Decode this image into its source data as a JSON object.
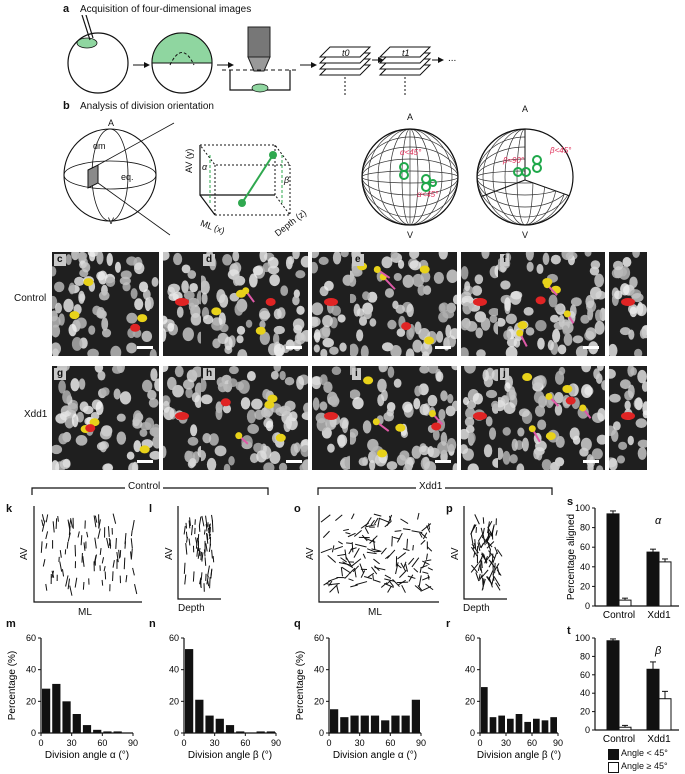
{
  "panel_a": {
    "letter": "a",
    "title": "Acquisition of four-dimensional images",
    "stack_t0": "t0",
    "stack_t1": "t1",
    "ellipsis": "..."
  },
  "panel_b": {
    "letter": "b",
    "title": "Analysis of division orientation",
    "sphere_a": "A",
    "sphere_v": "V",
    "sphere_dm": "dm",
    "sphere_eq": "eq.",
    "axis_av": "AV (y)",
    "axis_ml": "ML (x)",
    "axis_depth": "Depth (z)",
    "angle_alpha": "α",
    "angle_beta": "β",
    "globe1_a": "A",
    "globe1_v": "V",
    "globe1_top": "α<45°",
    "globe1_bot": "α<45°",
    "globe2_a": "A",
    "globe2_v": "V",
    "globe2_left": "β≈90°",
    "globe2_right": "β<45°"
  },
  "micro": {
    "row_control": "Control",
    "row_xdd1": "Xdd1",
    "tiles": [
      "c",
      "d",
      "e",
      "f",
      "g",
      "h",
      "i",
      "j"
    ]
  },
  "groups": {
    "control": "Control",
    "xdd1": "Xdd1"
  },
  "traces": {
    "k": {
      "letter": "k",
      "ylabel": "AV",
      "xlabel": "ML"
    },
    "l": {
      "letter": "l",
      "ylabel": "AV",
      "xlabel": "Depth"
    },
    "o": {
      "letter": "o",
      "ylabel": "AV",
      "xlabel": "ML"
    },
    "p": {
      "letter": "p",
      "ylabel": "AV",
      "xlabel": "Depth"
    }
  },
  "chart_data": [
    {
      "id": "m",
      "type": "bar",
      "letter": "m",
      "xlabel": "Division angle α (°)",
      "ylabel": "Percentage (%)",
      "x": [
        5,
        15,
        25,
        35,
        45,
        55,
        65,
        75,
        85
      ],
      "values": [
        28,
        31,
        20,
        12,
        5,
        2,
        1,
        1,
        0
      ],
      "ylim": [
        0,
        60
      ],
      "yticks": [
        0,
        20,
        40,
        60
      ],
      "xticks": [
        0,
        30,
        60,
        90
      ],
      "xlim": [
        0,
        90
      ]
    },
    {
      "id": "n",
      "type": "bar",
      "letter": "n",
      "xlabel": "Division angle β (°)",
      "ylabel": "",
      "x": [
        5,
        15,
        25,
        35,
        45,
        55,
        65,
        75,
        85
      ],
      "values": [
        53,
        21,
        11,
        9,
        5,
        1,
        0,
        1,
        1
      ],
      "ylim": [
        0,
        60
      ],
      "yticks": [
        0,
        20,
        40,
        60
      ],
      "xticks": [
        0,
        30,
        60,
        90
      ],
      "xlim": [
        0,
        90
      ]
    },
    {
      "id": "q",
      "type": "bar",
      "letter": "q",
      "xlabel": "Division angle α (°)",
      "ylabel": "Percentage (%)",
      "x": [
        5,
        15,
        25,
        35,
        45,
        55,
        65,
        75,
        85
      ],
      "values": [
        15,
        10,
        11,
        11,
        11,
        8,
        11,
        11,
        21
      ],
      "ylim": [
        0,
        60
      ],
      "yticks": [
        0,
        20,
        40,
        60
      ],
      "xticks": [
        0,
        30,
        60,
        90
      ],
      "xlim": [
        0,
        90
      ]
    },
    {
      "id": "r",
      "type": "bar",
      "letter": "r",
      "xlabel": "Division angle β (°)",
      "ylabel": "",
      "x": [
        5,
        15,
        25,
        35,
        45,
        55,
        65,
        75,
        85
      ],
      "values": [
        29,
        10,
        11,
        9,
        12,
        7,
        9,
        8,
        10
      ],
      "ylim": [
        0,
        60
      ],
      "yticks": [
        0,
        20,
        40,
        60
      ],
      "xticks": [
        0,
        30,
        60,
        90
      ],
      "xlim": [
        0,
        90
      ]
    },
    {
      "id": "s",
      "type": "bar",
      "letter": "s",
      "title": "α",
      "ylabel": "Percentage aligned",
      "categories": [
        "Control",
        "Xdd1"
      ],
      "series": [
        {
          "name": "Angle < 45°",
          "values": [
            94,
            55
          ],
          "errors": [
            3,
            3
          ],
          "color": "#111111"
        },
        {
          "name": "Angle ≥ 45°",
          "values": [
            6,
            45
          ],
          "errors": [
            2,
            3
          ],
          "color": "#ffffff"
        }
      ],
      "ylim": [
        0,
        100
      ],
      "yticks": [
        0,
        20,
        40,
        60,
        80,
        100
      ]
    },
    {
      "id": "t",
      "type": "bar",
      "letter": "t",
      "title": "β",
      "ylabel": "",
      "categories": [
        "Control",
        "Xdd1"
      ],
      "series": [
        {
          "name": "Angle < 45°",
          "values": [
            97,
            66
          ],
          "errors": [
            2,
            8
          ],
          "color": "#111111"
        },
        {
          "name": "Angle ≥ 45°",
          "values": [
            3,
            34
          ],
          "errors": [
            2,
            8
          ],
          "color": "#ffffff"
        }
      ],
      "ylim": [
        0,
        100
      ],
      "yticks": [
        0,
        20,
        40,
        60,
        80,
        100
      ]
    }
  ],
  "legend": {
    "item1": "Angle < 45°",
    "item2": "Angle ≥ 45°"
  }
}
